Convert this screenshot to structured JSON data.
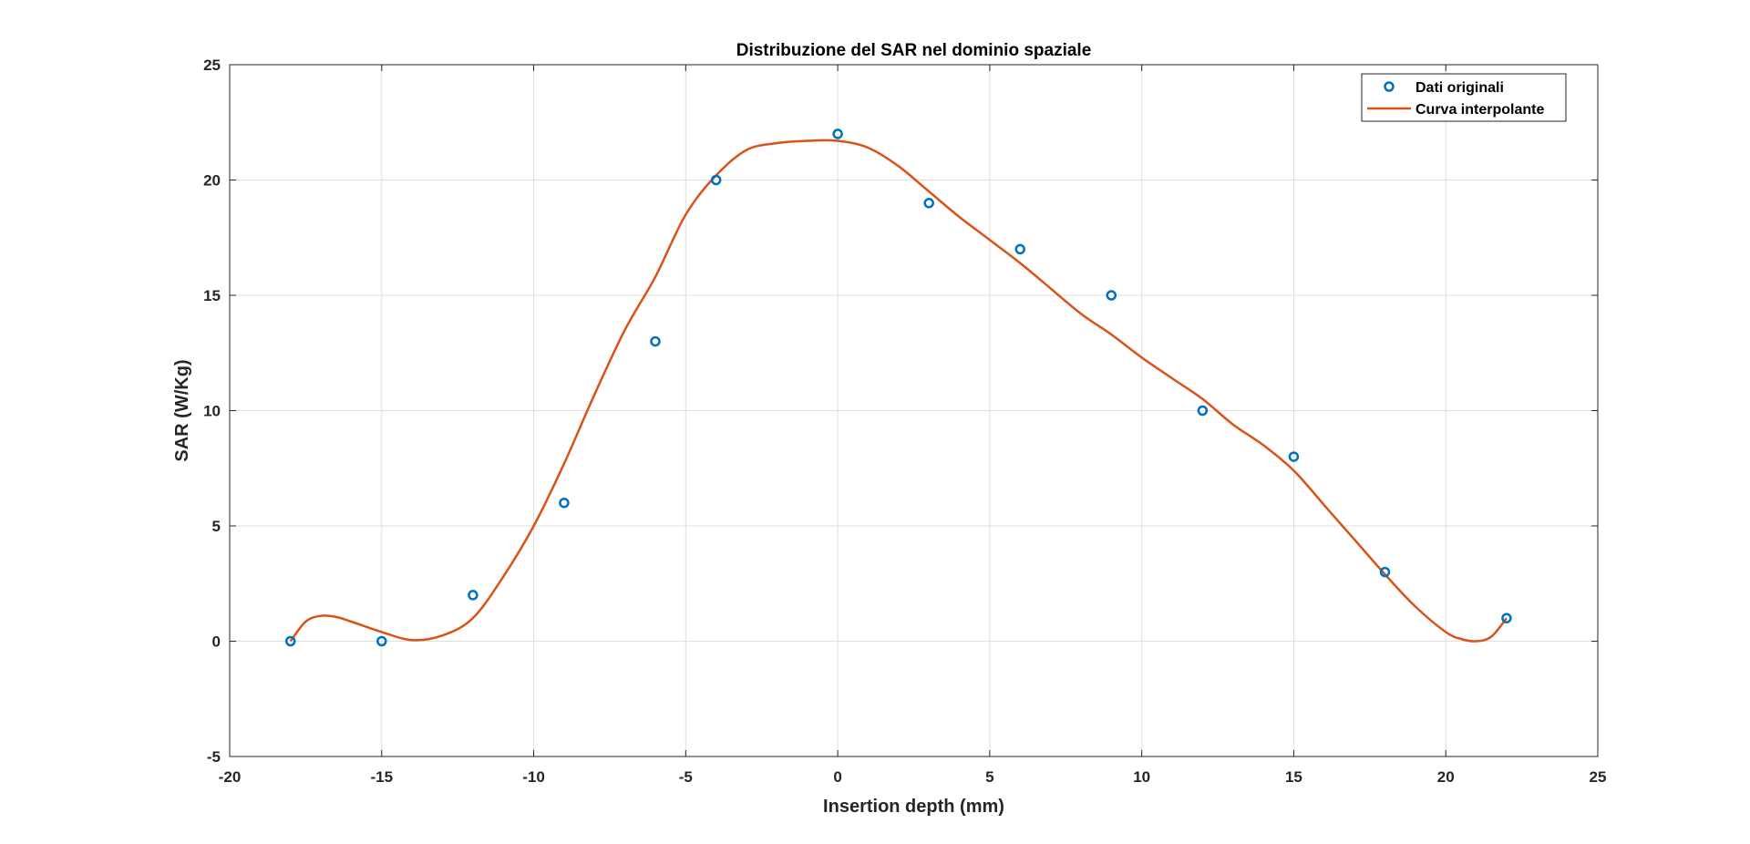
{
  "chart_data": {
    "type": "line",
    "title": "Distribuzione del SAR nel dominio spaziale",
    "xlabel": "Insertion depth (mm)",
    "ylabel": "SAR (W/Kg)",
    "xlim": [
      -20,
      25
    ],
    "ylim": [
      -5,
      25
    ],
    "xticks": [
      -20,
      -15,
      -10,
      -5,
      0,
      5,
      10,
      15,
      20,
      25
    ],
    "yticks": [
      -5,
      0,
      5,
      10,
      15,
      20,
      25
    ],
    "grid": true,
    "legend_position": "top-right",
    "series": [
      {
        "name": "Dati originali",
        "style": "markers",
        "marker": "circle",
        "color": "#0072BD",
        "x": [
          -18,
          -15,
          -12,
          -9,
          -6,
          -4,
          0,
          3,
          6,
          9,
          12,
          15,
          18,
          22
        ],
        "y": [
          0,
          0,
          2,
          6,
          13,
          20,
          22,
          19,
          17,
          15,
          10,
          8,
          3,
          1
        ]
      },
      {
        "name": "Curva interpolante",
        "style": "line",
        "color": "#D95319",
        "x": [
          -18,
          -17.5,
          -17,
          -16.5,
          -16,
          -15,
          -14,
          -13,
          -12,
          -11,
          -10,
          -9,
          -8,
          -7,
          -6,
          -5,
          -4,
          -3,
          -2,
          -1,
          0,
          1,
          2,
          3,
          4,
          5,
          6,
          7,
          8,
          9,
          10,
          11,
          12,
          13,
          14,
          15,
          16,
          17,
          18,
          19,
          20,
          20.5,
          21,
          21.5,
          22
        ],
        "y": [
          0,
          0.85,
          1.1,
          1.05,
          0.85,
          0.4,
          0.05,
          0.25,
          1.0,
          2.8,
          5.0,
          7.7,
          10.7,
          13.5,
          15.8,
          18.5,
          20.2,
          21.3,
          21.6,
          21.7,
          21.7,
          21.4,
          20.6,
          19.5,
          18.4,
          17.4,
          16.4,
          15.3,
          14.2,
          13.3,
          12.3,
          11.4,
          10.5,
          9.4,
          8.5,
          7.4,
          5.9,
          4.4,
          2.9,
          1.5,
          0.4,
          0.1,
          0.0,
          0.2,
          1.0
        ]
      }
    ]
  }
}
